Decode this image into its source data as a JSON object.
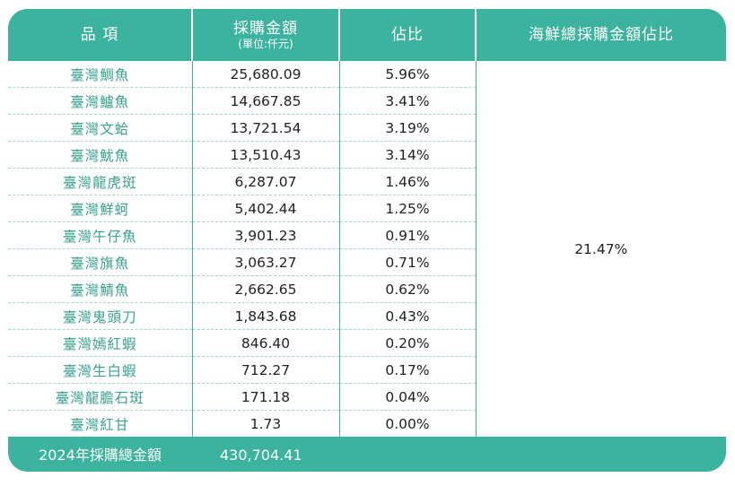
{
  "headers": {
    "item": "品 項",
    "amount": "採購金額",
    "amount_unit": "(單位:仟元)",
    "ratio": "佔比",
    "seafood_ratio": "海鮮總採購金額佔比"
  },
  "rows": [
    {
      "name": "臺灣鯛魚",
      "amount": "25,680.09",
      "ratio": "5.96%"
    },
    {
      "name": "臺灣鱸魚",
      "amount": "14,667.85",
      "ratio": "3.41%"
    },
    {
      "name": "臺灣文蛤",
      "amount": "13,721.54",
      "ratio": "3.19%"
    },
    {
      "name": "臺灣魷魚",
      "amount": "13,510.43",
      "ratio": "3.14%"
    },
    {
      "name": "臺灣龍虎斑",
      "amount": "6,287.07",
      "ratio": "1.46%"
    },
    {
      "name": "臺灣鮮蚵",
      "amount": "5,402.44",
      "ratio": "1.25%"
    },
    {
      "name": "臺灣午仔魚",
      "amount": "3,901.23",
      "ratio": "0.91%"
    },
    {
      "name": "臺灣旗魚",
      "amount": "3,063.27",
      "ratio": "0.71%"
    },
    {
      "name": "臺灣鯖魚",
      "amount": "2,662.65",
      "ratio": "0.62%"
    },
    {
      "name": "臺灣鬼頭刀",
      "amount": "1,843.68",
      "ratio": "0.43%"
    },
    {
      "name": "臺灣嫣紅蝦",
      "amount": "846.40",
      "ratio": "0.20%"
    },
    {
      "name": "臺灣生白蝦",
      "amount": "712.27",
      "ratio": "0.17%"
    },
    {
      "name": "臺灣龍膽石斑",
      "amount": "171.18",
      "ratio": "0.04%"
    },
    {
      "name": "臺灣紅甘",
      "amount": "1.73",
      "ratio": "0.00%"
    }
  ],
  "seafood_share": "21.47%",
  "footer": {
    "label": "2024年採購總金額",
    "total": "430,704.41"
  },
  "colors": {
    "accent": "#3cb39e",
    "item_text": "#3aa28f",
    "text": "#222222"
  }
}
